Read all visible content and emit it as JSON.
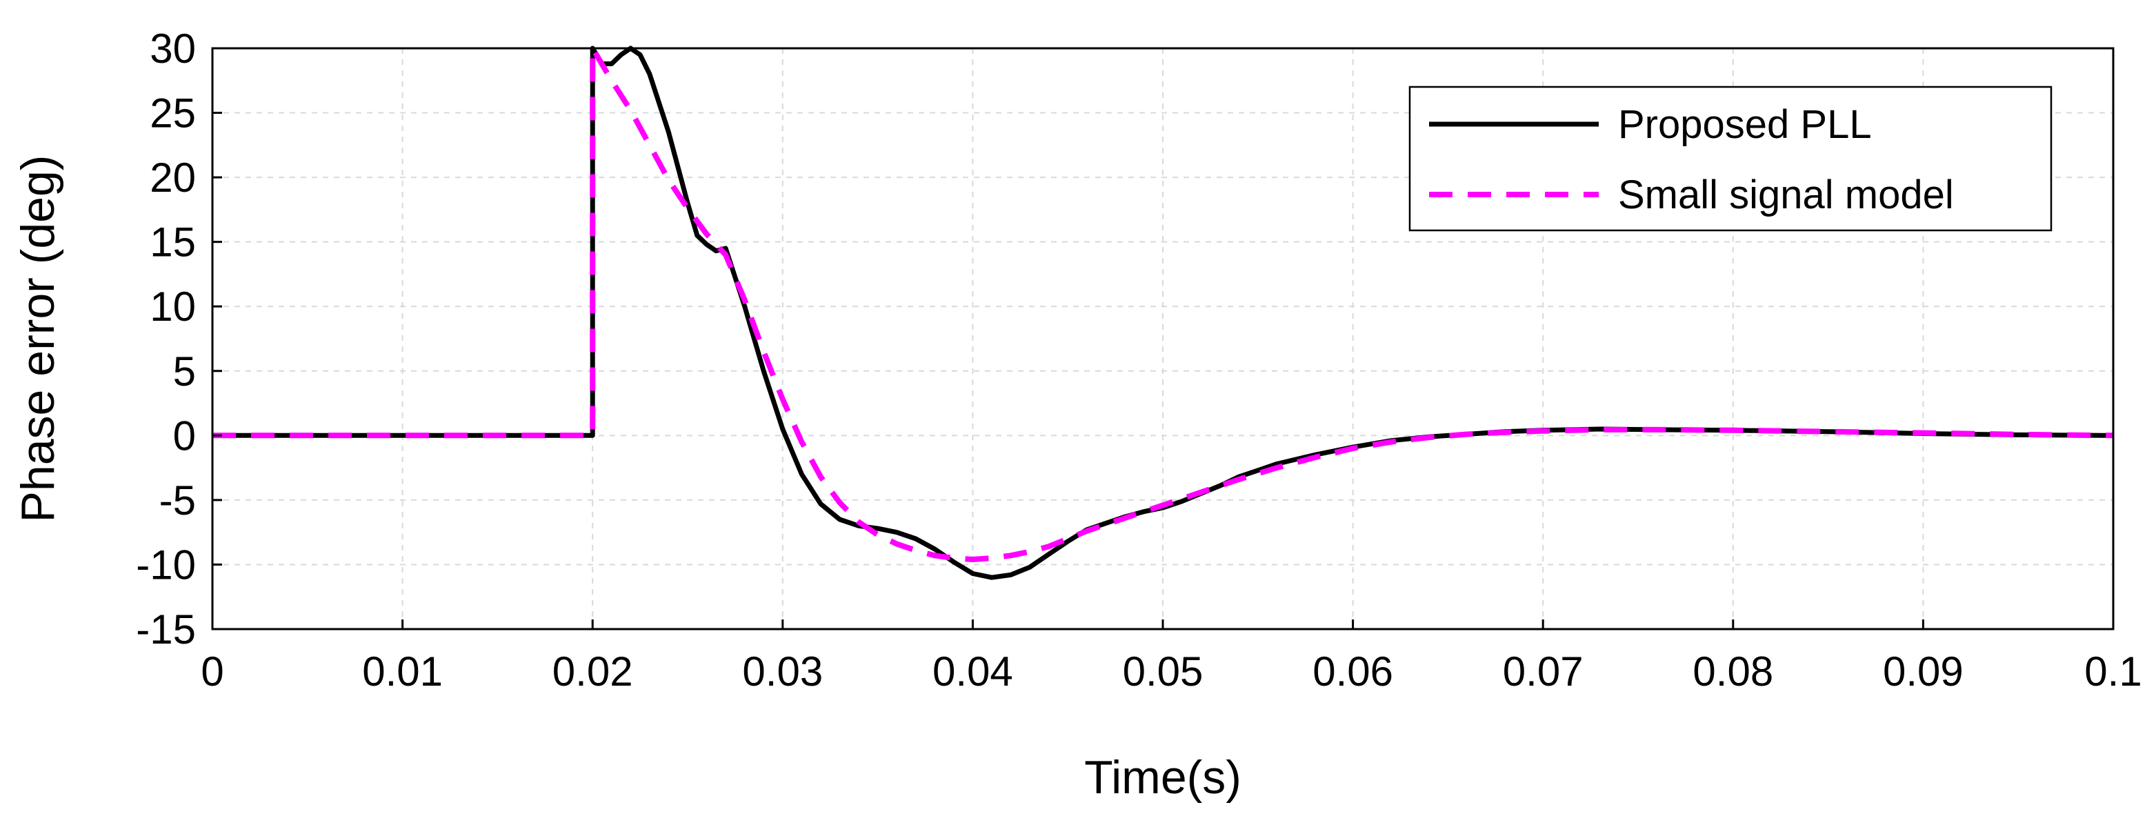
{
  "chart_data": {
    "type": "line",
    "title": "",
    "xlabel": "Time(s)",
    "ylabel": "Phase error (deg)",
    "xlim": [
      0,
      0.1
    ],
    "ylim": [
      -15,
      30
    ],
    "grid": true,
    "legend_position": "top-right",
    "x_tick_labels": [
      "0",
      "0.01",
      "0.02",
      "0.03",
      "0.04",
      "0.05",
      "0.06",
      "0.07",
      "0.08",
      "0.09",
      "0.1"
    ],
    "x_ticks": [
      0,
      0.01,
      0.02,
      0.03,
      0.04,
      0.05,
      0.06,
      0.07,
      0.08,
      0.09,
      0.1
    ],
    "y_tick_labels": [
      "30",
      "25",
      "20",
      "15",
      "10",
      "5",
      "0",
      "-5",
      "-10",
      "-15"
    ],
    "y_ticks": [
      30,
      25,
      20,
      15,
      10,
      5,
      0,
      -5,
      -10,
      -15
    ],
    "series": [
      {
        "name": "Proposed PLL",
        "color": "#000000",
        "style": "solid",
        "x": [
          0,
          0.02,
          0.02,
          0.0205,
          0.021,
          0.0215,
          0.022,
          0.0225,
          0.023,
          0.024,
          0.025,
          0.0255,
          0.026,
          0.0265,
          0.027,
          0.028,
          0.029,
          0.03,
          0.031,
          0.032,
          0.033,
          0.034,
          0.035,
          0.036,
          0.037,
          0.038,
          0.039,
          0.04,
          0.041,
          0.042,
          0.043,
          0.044,
          0.045,
          0.046,
          0.047,
          0.048,
          0.049,
          0.05,
          0.051,
          0.052,
          0.053,
          0.054,
          0.055,
          0.056,
          0.058,
          0.06,
          0.062,
          0.064,
          0.066,
          0.068,
          0.07,
          0.073,
          0.076,
          0.08,
          0.085,
          0.09,
          0.095,
          0.1
        ],
        "y": [
          0,
          0,
          30,
          28.8,
          28.8,
          29.5,
          30,
          29.5,
          28,
          23.5,
          18,
          15.5,
          14.8,
          14.3,
          14.5,
          10,
          5,
          0.5,
          -3,
          -5.3,
          -6.5,
          -7,
          -7.2,
          -7.5,
          -8,
          -8.8,
          -9.8,
          -10.7,
          -11,
          -10.8,
          -10.2,
          -9.2,
          -8.2,
          -7.3,
          -6.8,
          -6.3,
          -5.9,
          -5.6,
          -5.1,
          -4.5,
          -3.9,
          -3.2,
          -2.7,
          -2.2,
          -1.5,
          -0.9,
          -0.4,
          -0.1,
          0.1,
          0.3,
          0.4,
          0.5,
          0.45,
          0.4,
          0.3,
          0.15,
          0.05,
          0
        ]
      },
      {
        "name": "Small signal model",
        "color": "#ff00ff",
        "style": "dashed",
        "x": [
          0,
          0.02,
          0.02,
          0.021,
          0.022,
          0.023,
          0.024,
          0.025,
          0.026,
          0.027,
          0.028,
          0.029,
          0.03,
          0.031,
          0.032,
          0.033,
          0.034,
          0.035,
          0.036,
          0.037,
          0.038,
          0.039,
          0.04,
          0.041,
          0.042,
          0.043,
          0.044,
          0.045,
          0.046,
          0.047,
          0.048,
          0.049,
          0.05,
          0.052,
          0.054,
          0.056,
          0.058,
          0.06,
          0.062,
          0.064,
          0.066,
          0.068,
          0.07,
          0.073,
          0.076,
          0.08,
          0.085,
          0.09,
          0.095,
          0.1
        ],
        "y": [
          0,
          0,
          30,
          27.5,
          25.2,
          22.5,
          19.8,
          17.6,
          15.6,
          14,
          10.5,
          6.5,
          2.8,
          -0.5,
          -3.2,
          -5.2,
          -6.7,
          -7.7,
          -8.4,
          -8.9,
          -9.3,
          -9.5,
          -9.6,
          -9.5,
          -9.3,
          -9,
          -8.6,
          -8,
          -7.4,
          -6.9,
          -6.4,
          -5.9,
          -5.4,
          -4.4,
          -3.4,
          -2.5,
          -1.7,
          -1.0,
          -0.5,
          -0.15,
          0.1,
          0.25,
          0.35,
          0.45,
          0.45,
          0.4,
          0.3,
          0.2,
          0.08,
          0
        ]
      }
    ]
  }
}
